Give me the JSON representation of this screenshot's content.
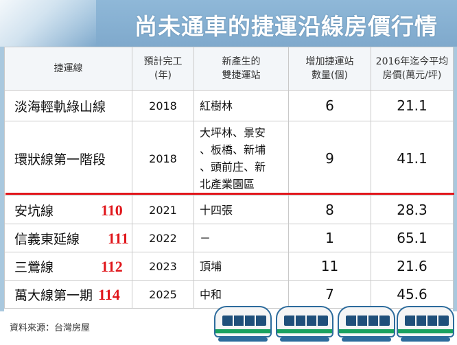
{
  "title": "尚未通車的捷運沿線房價行情",
  "headers": {
    "line": "捷運線",
    "year": [
      "預計完工",
      "(年)"
    ],
    "stations": [
      "新產生的",
      "雙捷運站"
    ],
    "count": [
      "增加捷運站",
      "數量(個)"
    ],
    "price": [
      "2016年迄今平均",
      "房價(萬元/坪)"
    ]
  },
  "rows": [
    {
      "line": "淡海輕軌綠山線",
      "code": "",
      "year": "2018",
      "stations": [
        "紅樹林"
      ],
      "count": "6",
      "price": "21.1"
    },
    {
      "line": "環狀線第一階段",
      "code": "",
      "year": "2018",
      "stations": [
        "大坪林、景安",
        "、板橋、新埔",
        "、頭前庄、新",
        "北產業園區"
      ],
      "count": "9",
      "price": "41.1"
    },
    {
      "line": "安坑線",
      "code": "110",
      "year": "2021",
      "stations": [
        "十四張"
      ],
      "count": "8",
      "price": "28.3"
    },
    {
      "line": "信義東延線",
      "code": "111",
      "year": "2022",
      "stations": [
        "－"
      ],
      "count": "1",
      "price": "65.1"
    },
    {
      "line": "三鶯線",
      "code": "112",
      "year": "2023",
      "stations": [
        "頂埔"
      ],
      "count": "11",
      "price": "21.6"
    },
    {
      "line": "萬大線第一期",
      "code": "114",
      "year": "2025",
      "stations": [
        "中和"
      ],
      "count": "7",
      "price": "45.6"
    }
  ],
  "source": "資料來源：台灣房屋",
  "colors": {
    "accent_red": "#e0161b",
    "frame_blue": "#a9c8de",
    "title_blue": "#7fa9cc",
    "train_green": "#19a15f"
  }
}
